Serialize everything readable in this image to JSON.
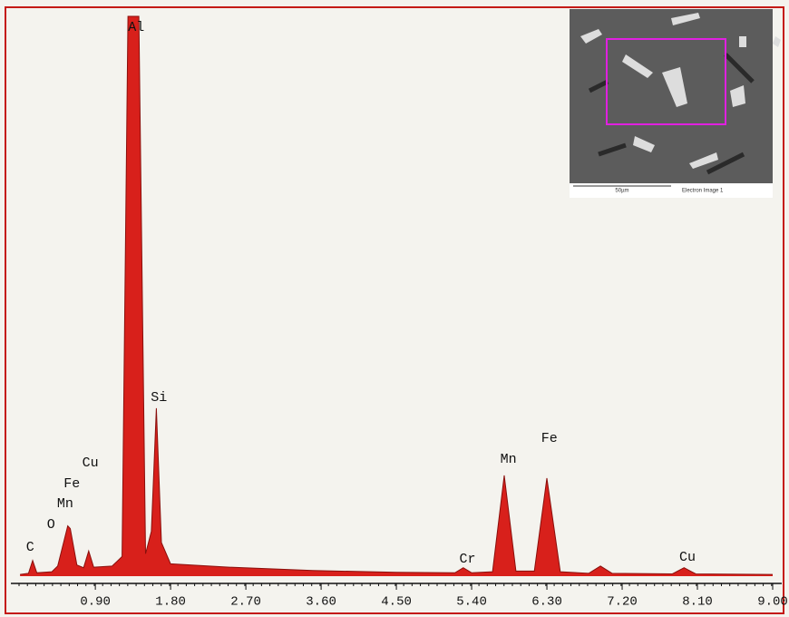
{
  "chart_data": {
    "type": "area",
    "x": [
      0.0,
      0.1,
      0.15,
      0.2,
      0.38,
      0.45,
      0.52,
      0.57,
      0.6,
      0.68,
      0.76,
      0.82,
      0.88,
      1.1,
      1.22,
      1.29,
      1.42,
      1.5,
      1.57,
      1.63,
      1.69,
      1.8,
      2.5,
      3.5,
      4.5,
      5.2,
      5.3,
      5.4,
      5.65,
      5.79,
      5.93,
      6.15,
      6.3,
      6.46,
      6.8,
      6.94,
      7.08,
      7.8,
      7.94,
      8.08,
      9.0
    ],
    "values": [
      0.3,
      0.5,
      2.8,
      0.6,
      0.8,
      1.8,
      6,
      9,
      8.5,
      2,
      1.5,
      4.5,
      1.6,
      1.8,
      3.5,
      100,
      100,
      4,
      8,
      30,
      6,
      2.2,
      1.6,
      1.0,
      0.7,
      0.6,
      1.5,
      0.6,
      0.8,
      18,
      0.9,
      0.9,
      17.5,
      0.8,
      0.5,
      1.8,
      0.5,
      0.4,
      1.5,
      0.4,
      0.3
    ],
    "color": "#d8201b",
    "xlim": [
      -0.11,
      9.0
    ],
    "ylim": [
      0,
      100
    ],
    "xticks": [
      {
        "value": 0.9,
        "label": "0.90"
      },
      {
        "value": 1.8,
        "label": "1.80"
      },
      {
        "value": 2.7,
        "label": "2.70"
      },
      {
        "value": 3.6,
        "label": "3.60"
      },
      {
        "value": 4.5,
        "label": "4.50"
      },
      {
        "value": 5.4,
        "label": "5.40"
      },
      {
        "value": 6.3,
        "label": "6.30"
      },
      {
        "value": 7.2,
        "label": "7.20"
      },
      {
        "value": 8.1,
        "label": "8.10"
      },
      {
        "value": 9.0,
        "label": "9.00"
      }
    ],
    "annotations": [
      {
        "text": "C",
        "x": 0.12
      },
      {
        "text": "O",
        "x": 0.37
      },
      {
        "text": "Mn",
        "x": 0.54
      },
      {
        "text": "Fe",
        "x": 0.62
      },
      {
        "text": "Cu",
        "x": 0.84
      },
      {
        "text": "Al",
        "x": 1.39
      },
      {
        "text": "Si",
        "x": 1.66
      },
      {
        "text": "Cr",
        "x": 5.35
      },
      {
        "text": "Mn",
        "x": 5.84
      },
      {
        "text": "Fe",
        "x": 6.33
      },
      {
        "text": "Cu",
        "x": 7.98
      }
    ]
  },
  "inset": {
    "scale_label": "50µm",
    "caption": "Electron Image 1"
  }
}
